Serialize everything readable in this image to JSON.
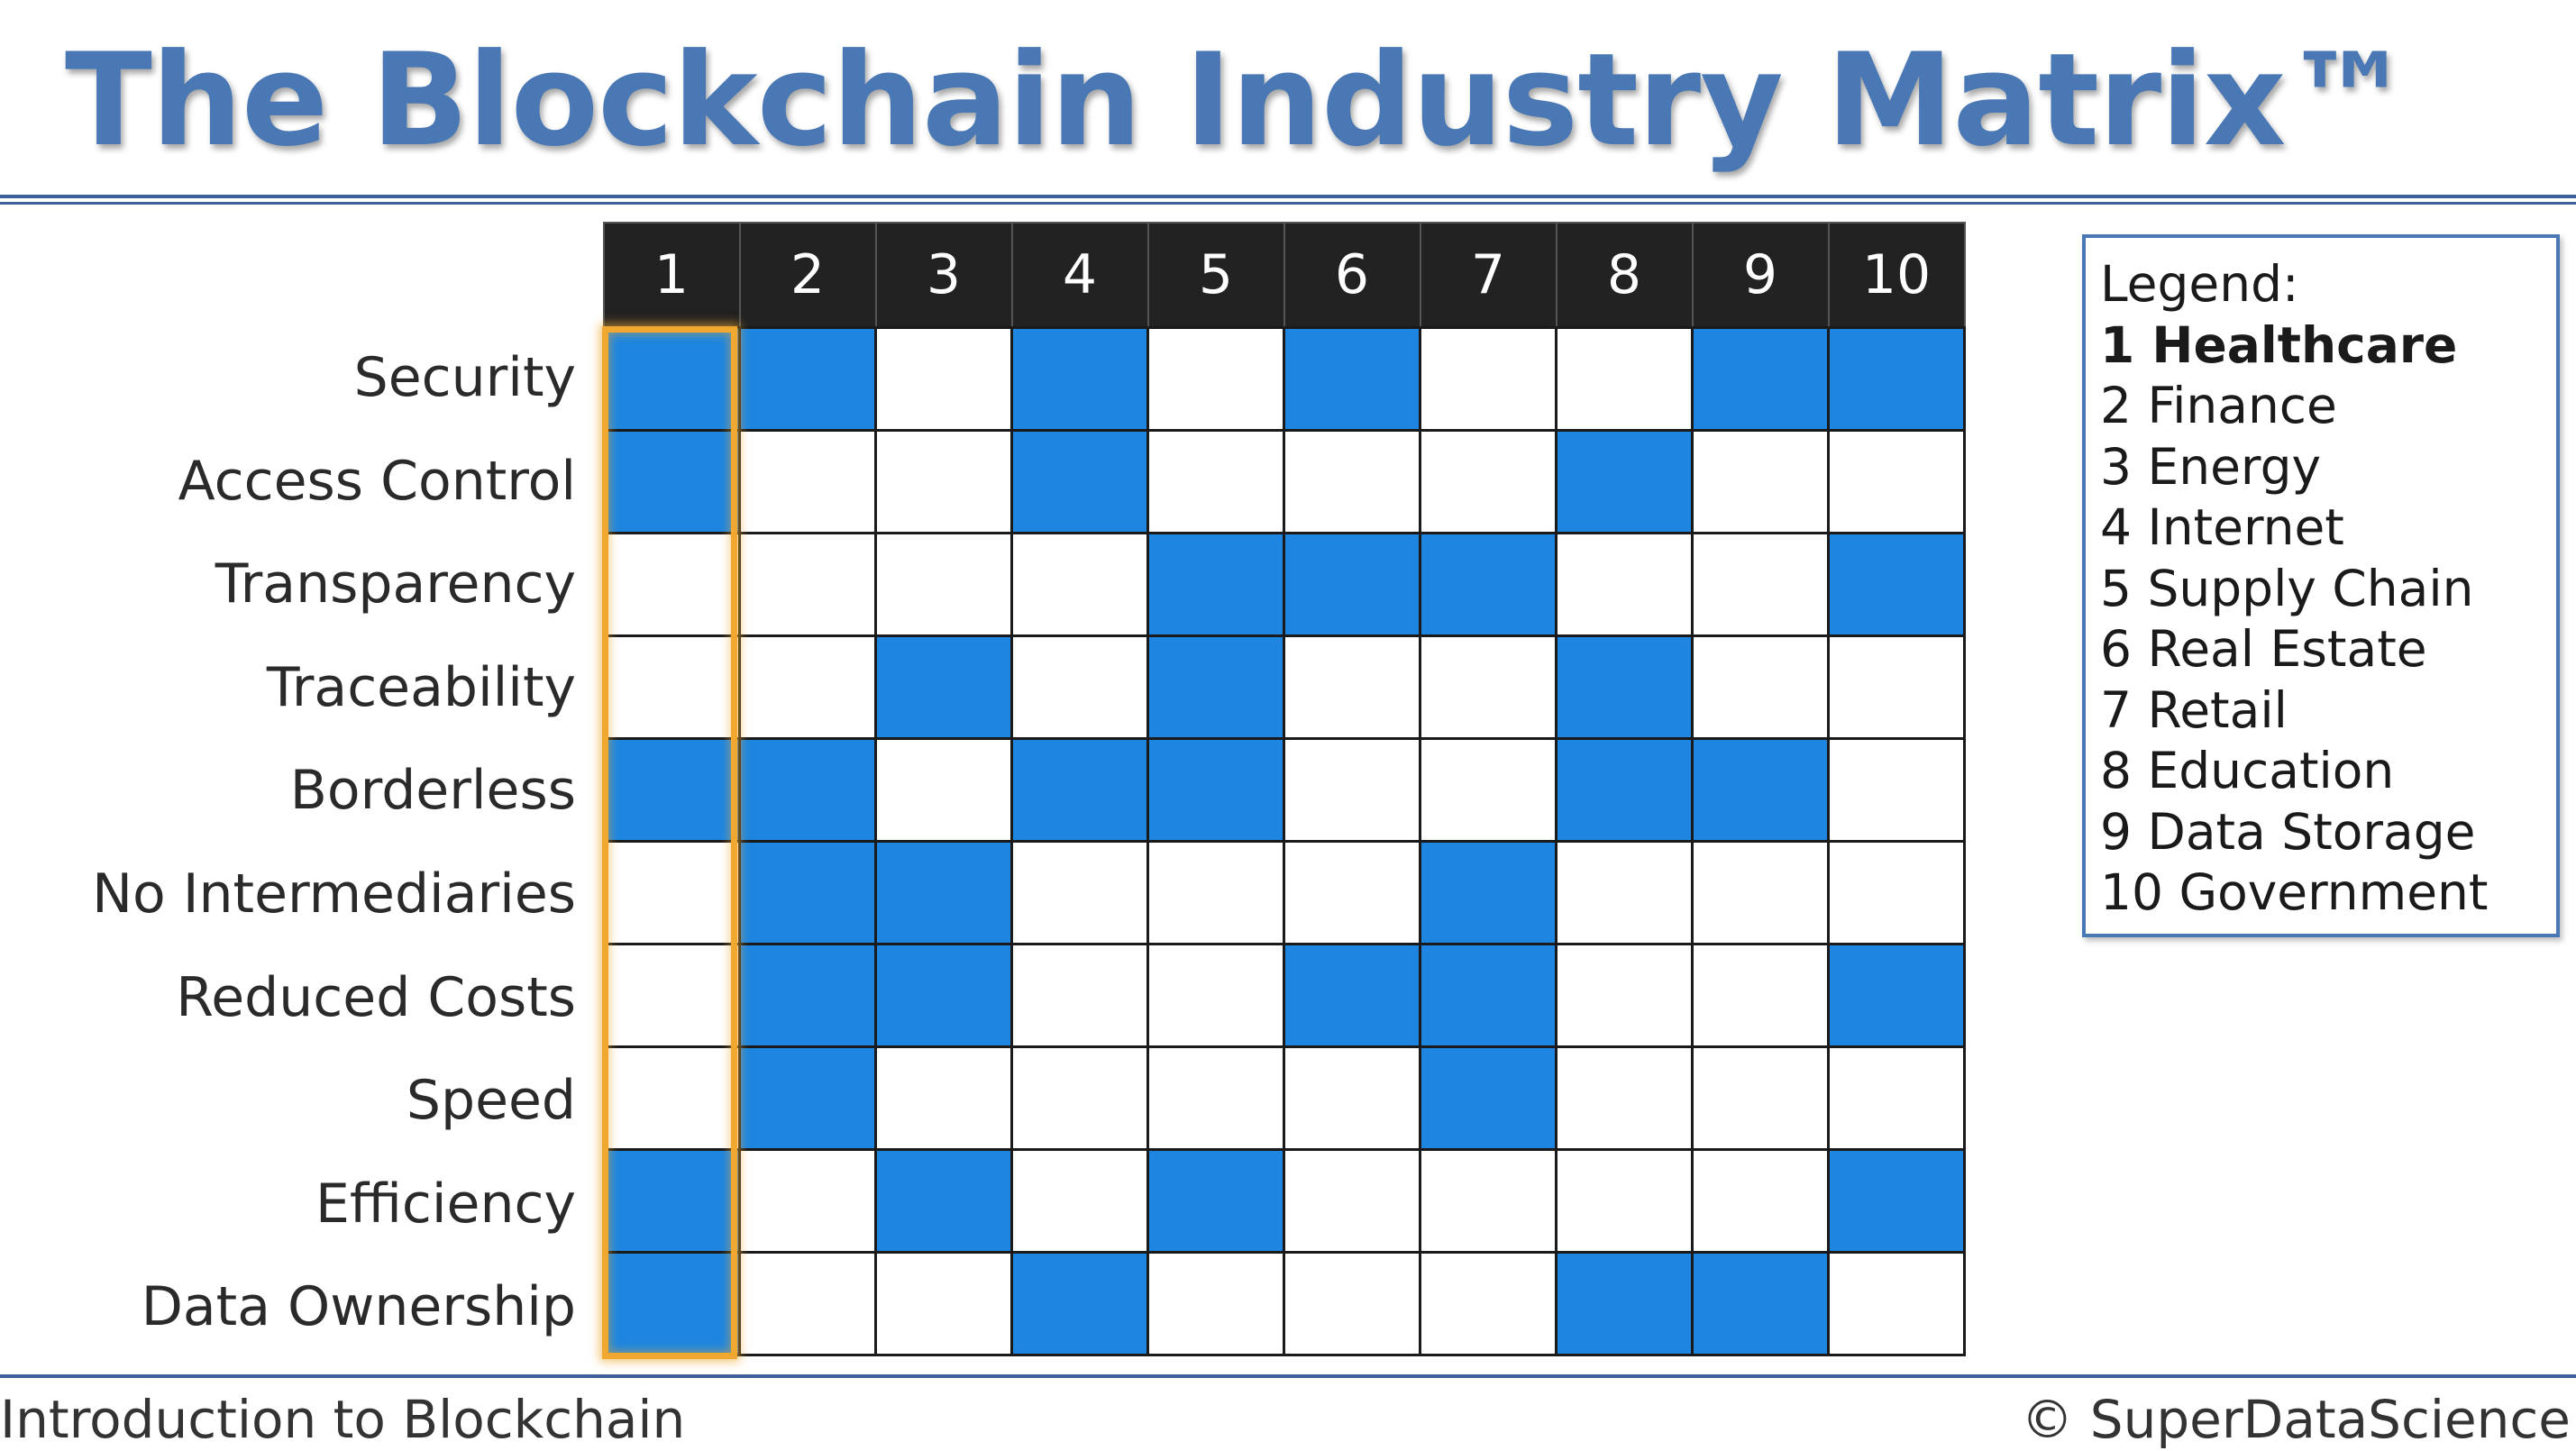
{
  "title": "The Blockchain Industry Matrix™",
  "columns": [
    "1",
    "2",
    "3",
    "4",
    "5",
    "6",
    "7",
    "8",
    "9",
    "10"
  ],
  "rows": [
    {
      "label": "Security",
      "cells": [
        1,
        1,
        0,
        1,
        0,
        1,
        0,
        0,
        1,
        1
      ]
    },
    {
      "label": "Access Control",
      "cells": [
        1,
        0,
        0,
        1,
        0,
        0,
        0,
        1,
        0,
        0
      ]
    },
    {
      "label": "Transparency",
      "cells": [
        0,
        0,
        0,
        0,
        1,
        1,
        1,
        0,
        0,
        1
      ]
    },
    {
      "label": "Traceability",
      "cells": [
        0,
        0,
        1,
        0,
        1,
        0,
        0,
        1,
        0,
        0
      ]
    },
    {
      "label": "Borderless",
      "cells": [
        1,
        1,
        0,
        1,
        1,
        0,
        0,
        1,
        1,
        0
      ]
    },
    {
      "label": "No Intermediaries",
      "cells": [
        0,
        1,
        1,
        0,
        0,
        0,
        1,
        0,
        0,
        0
      ]
    },
    {
      "label": "Reduced Costs",
      "cells": [
        0,
        1,
        1,
        0,
        0,
        1,
        1,
        0,
        0,
        1
      ]
    },
    {
      "label": "Speed",
      "cells": [
        0,
        1,
        0,
        0,
        0,
        0,
        1,
        0,
        0,
        0
      ]
    },
    {
      "label": "Efficiency",
      "cells": [
        1,
        0,
        1,
        0,
        1,
        0,
        0,
        0,
        0,
        1
      ]
    },
    {
      "label": "Data Ownership",
      "cells": [
        1,
        0,
        0,
        1,
        0,
        0,
        0,
        1,
        1,
        0
      ]
    }
  ],
  "highlighted_column": "1",
  "legend": {
    "heading": "Legend:",
    "items": [
      "1 Healthcare",
      "2 Finance",
      "3 Energy",
      "4 Internet",
      "5 Supply Chain",
      "6 Real Estate",
      "7 Retail",
      "8 Education",
      "9 Data Storage",
      "10 Government"
    ],
    "bold_index": 0
  },
  "footer": {
    "left": "Introduction to Blockchain",
    "right": "© SuperDataScience"
  },
  "colors": {
    "filled": "#1e86e0",
    "header_bg": "#222222",
    "highlight": "#f0a830",
    "title": "#4a78b4",
    "rule": "#3d5f9a"
  }
}
